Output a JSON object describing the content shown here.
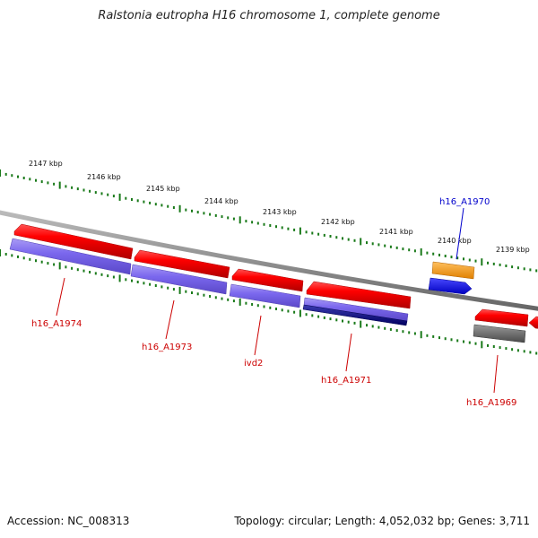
{
  "title": "Ralstonia eutropha H16 chromosome 1, complete genome",
  "footer": {
    "accession": "Accession: NC_008313",
    "summary": "Topology: circular; Length: 4,052,032 bp; Genes: 3,711"
  },
  "colors": {
    "forward_cds": "#ff0000",
    "reverse_cds": "#7b68ee",
    "reverse_cds_dark": "#000080",
    "backbone": "#888888",
    "tick": "#1a7a1a",
    "orange_gene": "#ff9900",
    "blue_gene": "#0000ff",
    "gray_gene": "#666666",
    "label_red": "#cc0000",
    "label_blue": "#0000cc"
  },
  "ticks": {
    "labels": [
      "2147 kbp",
      "2146 kbp",
      "2145 kbp",
      "2144 kbp",
      "2143 kbp",
      "2142 kbp",
      "2141 kbp",
      "2140 kbp",
      "2139 kbp"
    ]
  },
  "genes": [
    {
      "name": "h16_A1974",
      "color_key": "label_red"
    },
    {
      "name": "h16_A1973",
      "color_key": "label_red"
    },
    {
      "name": "ivd2",
      "color_key": "label_red"
    },
    {
      "name": "h16_A1971",
      "color_key": "label_red"
    },
    {
      "name": "h16_A1970",
      "color_key": "label_blue"
    },
    {
      "name": "h16_A1969",
      "color_key": "label_red"
    }
  ]
}
